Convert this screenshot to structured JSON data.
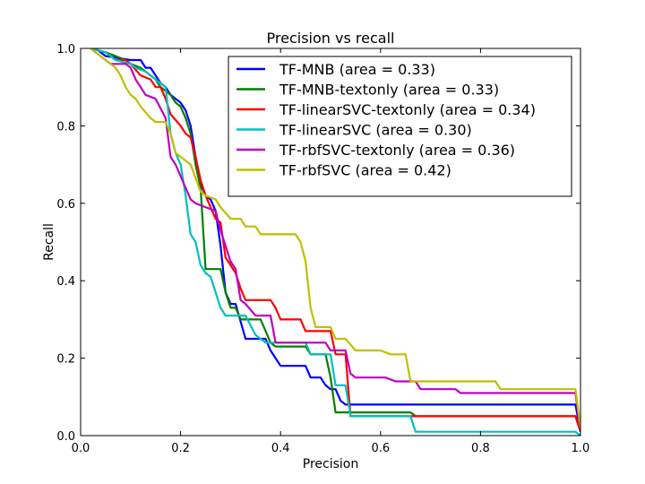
{
  "chart_data": {
    "type": "line",
    "title": "Precision vs recall",
    "xlabel": "Precision",
    "ylabel": "Recall",
    "xlim": [
      0.0,
      1.0
    ],
    "ylim": [
      0.0,
      1.0
    ],
    "xticks": [
      "0.0",
      "0.2",
      "0.4",
      "0.6",
      "0.8",
      "1.0"
    ],
    "yticks": [
      "0.0",
      "0.2",
      "0.4",
      "0.6",
      "0.8",
      "1.0"
    ],
    "grid": false,
    "legend_position": "top-right",
    "series": [
      {
        "name": "TF-MNB (area = 0.33)",
        "color": "#0000ff",
        "points": [
          [
            0.03,
            1.0
          ],
          [
            0.05,
            0.98
          ],
          [
            0.1,
            0.97
          ],
          [
            0.12,
            0.97
          ],
          [
            0.13,
            0.95
          ],
          [
            0.14,
            0.95
          ],
          [
            0.15,
            0.93
          ],
          [
            0.16,
            0.91
          ],
          [
            0.17,
            0.9
          ],
          [
            0.18,
            0.88
          ],
          [
            0.19,
            0.87
          ],
          [
            0.2,
            0.86
          ],
          [
            0.21,
            0.84
          ],
          [
            0.22,
            0.8
          ],
          [
            0.23,
            0.72
          ],
          [
            0.24,
            0.65
          ],
          [
            0.25,
            0.62
          ],
          [
            0.26,
            0.61
          ],
          [
            0.27,
            0.58
          ],
          [
            0.28,
            0.49
          ],
          [
            0.29,
            0.37
          ],
          [
            0.3,
            0.34
          ],
          [
            0.31,
            0.34
          ],
          [
            0.33,
            0.25
          ],
          [
            0.37,
            0.25
          ],
          [
            0.38,
            0.22
          ],
          [
            0.39,
            0.2
          ],
          [
            0.4,
            0.18
          ],
          [
            0.45,
            0.18
          ],
          [
            0.46,
            0.15
          ],
          [
            0.48,
            0.15
          ],
          [
            0.49,
            0.13
          ],
          [
            0.5,
            0.12
          ],
          [
            0.51,
            0.12
          ],
          [
            0.52,
            0.09
          ],
          [
            0.53,
            0.08
          ],
          [
            0.99,
            0.08
          ],
          [
            1.0,
            0.01
          ]
        ]
      },
      {
        "name": "TF-MNB-textonly (area = 0.33)",
        "color": "#008000",
        "points": [
          [
            0.02,
            1.0
          ],
          [
            0.05,
            0.99
          ],
          [
            0.07,
            0.98
          ],
          [
            0.09,
            0.97
          ],
          [
            0.1,
            0.96
          ],
          [
            0.12,
            0.95
          ],
          [
            0.13,
            0.94
          ],
          [
            0.15,
            0.92
          ],
          [
            0.16,
            0.9
          ],
          [
            0.17,
            0.89
          ],
          [
            0.18,
            0.88
          ],
          [
            0.19,
            0.86
          ],
          [
            0.2,
            0.85
          ],
          [
            0.21,
            0.82
          ],
          [
            0.22,
            0.78
          ],
          [
            0.23,
            0.7
          ],
          [
            0.24,
            0.64
          ],
          [
            0.25,
            0.43
          ],
          [
            0.28,
            0.43
          ],
          [
            0.29,
            0.37
          ],
          [
            0.3,
            0.33
          ],
          [
            0.31,
            0.33
          ],
          [
            0.32,
            0.3
          ],
          [
            0.36,
            0.3
          ],
          [
            0.37,
            0.27
          ],
          [
            0.38,
            0.24
          ],
          [
            0.39,
            0.23
          ],
          [
            0.45,
            0.23
          ],
          [
            0.46,
            0.21
          ],
          [
            0.49,
            0.21
          ],
          [
            0.5,
            0.15
          ],
          [
            0.51,
            0.06
          ],
          [
            0.66,
            0.06
          ],
          [
            0.67,
            0.05
          ],
          [
            0.99,
            0.05
          ],
          [
            1.0,
            0.01
          ]
        ]
      },
      {
        "name": "TF-linearSVC-textonly (area = 0.34)",
        "color": "#ff0000",
        "points": [
          [
            0.02,
            1.0
          ],
          [
            0.05,
            0.99
          ],
          [
            0.07,
            0.97
          ],
          [
            0.09,
            0.97
          ],
          [
            0.1,
            0.96
          ],
          [
            0.12,
            0.93
          ],
          [
            0.14,
            0.92
          ],
          [
            0.15,
            0.9
          ],
          [
            0.16,
            0.9
          ],
          [
            0.17,
            0.87
          ],
          [
            0.18,
            0.83
          ],
          [
            0.2,
            0.8
          ],
          [
            0.21,
            0.78
          ],
          [
            0.22,
            0.77
          ],
          [
            0.23,
            0.72
          ],
          [
            0.24,
            0.66
          ],
          [
            0.25,
            0.62
          ],
          [
            0.27,
            0.56
          ],
          [
            0.28,
            0.55
          ],
          [
            0.29,
            0.46
          ],
          [
            0.31,
            0.42
          ],
          [
            0.32,
            0.38
          ],
          [
            0.33,
            0.35
          ],
          [
            0.38,
            0.35
          ],
          [
            0.39,
            0.33
          ],
          [
            0.4,
            0.3
          ],
          [
            0.44,
            0.3
          ],
          [
            0.45,
            0.27
          ],
          [
            0.5,
            0.27
          ],
          [
            0.51,
            0.21
          ],
          [
            0.53,
            0.21
          ],
          [
            0.54,
            0.05
          ],
          [
            0.99,
            0.05
          ],
          [
            1.0,
            0.01
          ]
        ]
      },
      {
        "name": "TF-linearSVC (area = 0.30)",
        "color": "#00bfbf",
        "points": [
          [
            0.02,
            1.0
          ],
          [
            0.05,
            0.99
          ],
          [
            0.07,
            0.97
          ],
          [
            0.1,
            0.96
          ],
          [
            0.11,
            0.95
          ],
          [
            0.13,
            0.94
          ],
          [
            0.15,
            0.92
          ],
          [
            0.17,
            0.9
          ],
          [
            0.18,
            0.78
          ],
          [
            0.19,
            0.73
          ],
          [
            0.2,
            0.7
          ],
          [
            0.21,
            0.62
          ],
          [
            0.22,
            0.52
          ],
          [
            0.23,
            0.5
          ],
          [
            0.24,
            0.44
          ],
          [
            0.25,
            0.42
          ],
          [
            0.26,
            0.41
          ],
          [
            0.27,
            0.37
          ],
          [
            0.28,
            0.33
          ],
          [
            0.29,
            0.31
          ],
          [
            0.31,
            0.31
          ],
          [
            0.33,
            0.31
          ],
          [
            0.35,
            0.26
          ],
          [
            0.37,
            0.24
          ],
          [
            0.45,
            0.24
          ],
          [
            0.46,
            0.21
          ],
          [
            0.5,
            0.21
          ],
          [
            0.51,
            0.13
          ],
          [
            0.53,
            0.13
          ],
          [
            0.54,
            0.05
          ],
          [
            0.66,
            0.05
          ],
          [
            0.67,
            0.01
          ],
          [
            0.99,
            0.01
          ],
          [
            1.0,
            0.0
          ]
        ]
      },
      {
        "name": "TF-rbfSVC-textonly (area = 0.36)",
        "color": "#bf00bf",
        "points": [
          [
            0.02,
            1.0
          ],
          [
            0.05,
            0.97
          ],
          [
            0.06,
            0.96
          ],
          [
            0.09,
            0.96
          ],
          [
            0.1,
            0.95
          ],
          [
            0.11,
            0.92
          ],
          [
            0.12,
            0.9
          ],
          [
            0.13,
            0.88
          ],
          [
            0.15,
            0.87
          ],
          [
            0.17,
            0.82
          ],
          [
            0.18,
            0.72
          ],
          [
            0.19,
            0.7
          ],
          [
            0.21,
            0.64
          ],
          [
            0.22,
            0.61
          ],
          [
            0.23,
            0.6
          ],
          [
            0.25,
            0.59
          ],
          [
            0.27,
            0.58
          ],
          [
            0.28,
            0.53
          ],
          [
            0.3,
            0.45
          ],
          [
            0.31,
            0.43
          ],
          [
            0.32,
            0.35
          ],
          [
            0.33,
            0.34
          ],
          [
            0.35,
            0.31
          ],
          [
            0.38,
            0.31
          ],
          [
            0.39,
            0.24
          ],
          [
            0.49,
            0.24
          ],
          [
            0.5,
            0.22
          ],
          [
            0.53,
            0.22
          ],
          [
            0.54,
            0.16
          ],
          [
            0.55,
            0.15
          ],
          [
            0.61,
            0.15
          ],
          [
            0.63,
            0.14
          ],
          [
            0.67,
            0.14
          ],
          [
            0.68,
            0.12
          ],
          [
            0.75,
            0.12
          ],
          [
            0.76,
            0.11
          ],
          [
            0.99,
            0.11
          ],
          [
            1.0,
            0.01
          ]
        ]
      },
      {
        "name": "TF-rbfSVC (area = 0.42)",
        "color": "#bfbf00",
        "points": [
          [
            0.02,
            1.0
          ],
          [
            0.05,
            0.97
          ],
          [
            0.07,
            0.95
          ],
          [
            0.08,
            0.93
          ],
          [
            0.09,
            0.9
          ],
          [
            0.1,
            0.88
          ],
          [
            0.11,
            0.87
          ],
          [
            0.12,
            0.85
          ],
          [
            0.14,
            0.82
          ],
          [
            0.15,
            0.81
          ],
          [
            0.17,
            0.81
          ],
          [
            0.18,
            0.78
          ],
          [
            0.19,
            0.73
          ],
          [
            0.2,
            0.72
          ],
          [
            0.22,
            0.7
          ],
          [
            0.24,
            0.63
          ],
          [
            0.25,
            0.62
          ],
          [
            0.27,
            0.61
          ],
          [
            0.28,
            0.59
          ],
          [
            0.3,
            0.56
          ],
          [
            0.32,
            0.56
          ],
          [
            0.33,
            0.54
          ],
          [
            0.35,
            0.54
          ],
          [
            0.36,
            0.52
          ],
          [
            0.43,
            0.52
          ],
          [
            0.44,
            0.5
          ],
          [
            0.45,
            0.45
          ],
          [
            0.46,
            0.33
          ],
          [
            0.47,
            0.28
          ],
          [
            0.5,
            0.28
          ],
          [
            0.51,
            0.25
          ],
          [
            0.53,
            0.25
          ],
          [
            0.55,
            0.22
          ],
          [
            0.6,
            0.22
          ],
          [
            0.62,
            0.21
          ],
          [
            0.65,
            0.21
          ],
          [
            0.66,
            0.14
          ],
          [
            0.83,
            0.14
          ],
          [
            0.84,
            0.12
          ],
          [
            0.99,
            0.12
          ],
          [
            1.0,
            0.02
          ]
        ]
      }
    ]
  }
}
